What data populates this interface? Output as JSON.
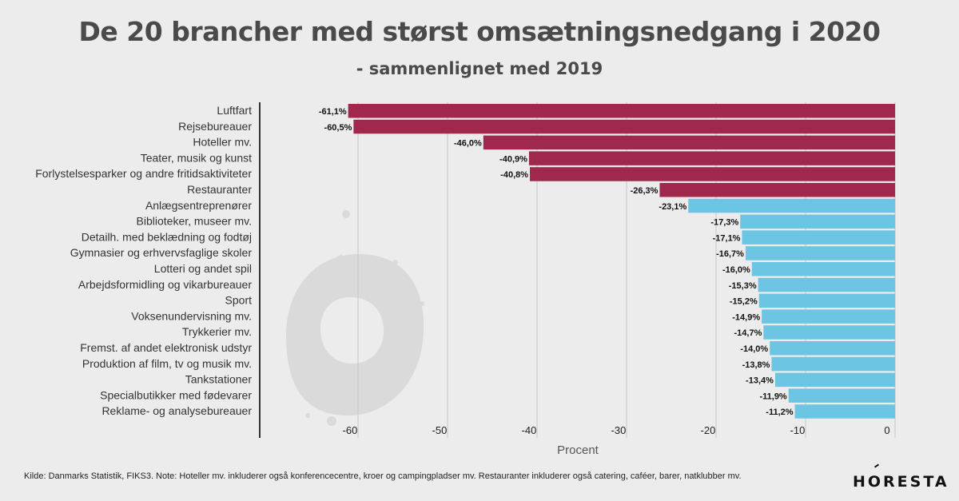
{
  "title": "De 20 brancher med størst omsætningsnedgang i 2020",
  "subtitle": "- sammenlignet med 2019",
  "footer": "Kilde: Danmarks Statistik, FIKS3. Note: Hoteller mv. inkluderer også konferencecentre, kroer og campingpladser mv. Restauranter inkluderer også catering, caféer, barer, natklubber mv.",
  "logo": "HORESTA",
  "colors": {
    "red": "#a0284c",
    "blue": "#6cc5e2",
    "grid": "#c8c8c8",
    "axis": "#333333"
  },
  "chart_data": {
    "type": "bar",
    "orientation": "horizontal",
    "categories": [
      "Luftfart",
      "Rejsebureauer",
      "Hoteller mv.",
      "Teater, musik og kunst",
      "Forlystelsesparker og andre fritidsaktiviteter",
      "Restauranter",
      "Anlægsentreprenører",
      "Biblioteker, museer mv.",
      "Detailh. med beklædning og fodtøj",
      "Gymnasier og erhvervsfaglige skoler",
      "Lotteri og andet spil",
      "Arbejdsformidling og vikarbureauer",
      "Sport",
      "Voksenundervisning mv.",
      "Trykkerier mv.",
      "Fremst. af andet elektronisk udstyr",
      "Produktion af film, tv og musik mv.",
      "Tankstationer",
      "Specialbutikker med fødevarer",
      "Reklame- og analysebureauer"
    ],
    "values": [
      -61.1,
      -60.5,
      -46.0,
      -40.9,
      -40.8,
      -26.3,
      -23.1,
      -17.3,
      -17.1,
      -16.7,
      -16.0,
      -15.3,
      -15.2,
      -14.9,
      -14.7,
      -14.0,
      -13.8,
      -13.4,
      -11.9,
      -11.2
    ],
    "data_labels": [
      "-61,1%",
      "-60,5%",
      "-46,0%",
      "-40,9%",
      "-40,8%",
      "-26,3%",
      "-23,1%",
      "-17,3%",
      "-17,1%",
      "-16,7%",
      "-16,0%",
      "-15,3%",
      "-15,2%",
      "-14,9%",
      "-14,7%",
      "-14,0%",
      "-13,8%",
      "-13,4%",
      "-11,9%",
      "-11,2%"
    ],
    "highlight_count": 6,
    "xlabel": "Procent",
    "ylabel": "",
    "xlim": [
      -70,
      0
    ],
    "xticks": [
      -60,
      -50,
      -40,
      -30,
      -20,
      -10,
      0
    ],
    "xtick_labels": [
      "-60",
      "-50",
      "-40",
      "-30",
      "-20",
      "-10",
      "0"
    ],
    "grid": true,
    "legend": "none"
  }
}
